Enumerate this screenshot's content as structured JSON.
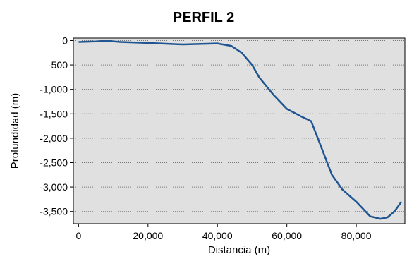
{
  "chart_data": {
    "type": "line",
    "title": "PERFIL 2",
    "xlabel": "Distancia (m)",
    "ylabel": "Profundidad (m)",
    "xlim": [
      -1500,
      94000
    ],
    "ylim": [
      -3750,
      50
    ],
    "xticks": [
      0,
      20000,
      40000,
      60000,
      80000
    ],
    "xtick_labels": [
      "0",
      "20,000",
      "40,000",
      "60,000",
      "80,000"
    ],
    "yticks": [
      0,
      -500,
      -1000,
      -1500,
      -2000,
      -2500,
      -3000,
      -3500
    ],
    "ytick_labels": [
      "0",
      "-500",
      "-1,000",
      "-1,500",
      "-2,000",
      "-2,500",
      "-3,000",
      "-3,500"
    ],
    "grid": "horizontal dotted",
    "background_color": "#e0e0e0",
    "line_color": "#1f5591",
    "series": [
      {
        "x": [
          0,
          5000,
          8000,
          12000,
          20000,
          30000,
          40000,
          44000,
          47000,
          50000,
          52000,
          56000,
          60000,
          64000,
          67000,
          70000,
          73000,
          76000,
          80000,
          84000,
          87000,
          89000,
          91000,
          93000
        ],
        "y": [
          -30,
          -20,
          -5,
          -30,
          -50,
          -80,
          -60,
          -110,
          -250,
          -500,
          -750,
          -1100,
          -1400,
          -1550,
          -1650,
          -2200,
          -2750,
          -3050,
          -3300,
          -3600,
          -3650,
          -3620,
          -3500,
          -3300
        ]
      }
    ]
  }
}
